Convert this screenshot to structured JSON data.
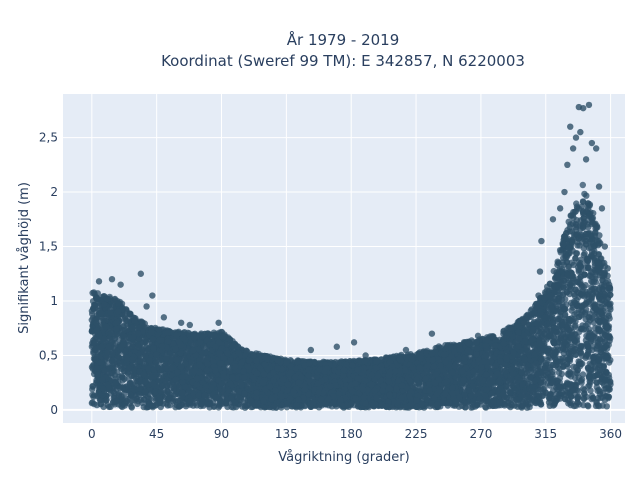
{
  "chart_data": {
    "type": "scatter",
    "title": "År 1979 - 2019",
    "subtitle": "Koordinat (Sweref 99 TM): E 342857, N 6220003",
    "xlabel": "Vågriktning (grader)",
    "ylabel": "Signifikant våghöjd (m)",
    "xlim": [
      -20,
      370
    ],
    "ylim": [
      -0.12,
      2.9
    ],
    "x_ticks": [
      0,
      45,
      90,
      135,
      180,
      225,
      270,
      315,
      360
    ],
    "x_tick_labels": [
      "0",
      "45",
      "90",
      "135",
      "180",
      "225",
      "270",
      "315",
      "360"
    ],
    "y_ticks": [
      0,
      0.5,
      1,
      1.5,
      2,
      2.5
    ],
    "y_tick_labels": [
      "0",
      "0,5",
      "1",
      "1,5",
      "2",
      "2,5"
    ],
    "marker_color": "#2e5068",
    "background": "#e5ecf6",
    "grid": true,
    "envelope": {
      "x": [
        0,
        10,
        20,
        30,
        45,
        60,
        75,
        90,
        105,
        120,
        135,
        150,
        165,
        180,
        195,
        210,
        225,
        240,
        255,
        270,
        285,
        300,
        310,
        320,
        330,
        340,
        350,
        360
      ],
      "y_upper": [
        1.1,
        1.05,
        1.0,
        0.85,
        0.75,
        0.72,
        0.7,
        0.72,
        0.55,
        0.5,
        0.46,
        0.45,
        0.44,
        0.45,
        0.46,
        0.5,
        0.52,
        0.58,
        0.62,
        0.65,
        0.72,
        0.85,
        1.0,
        1.25,
        1.7,
        2.1,
        1.75,
        1.1
      ]
    },
    "outliers": [
      {
        "x": 5,
        "y": 1.18
      },
      {
        "x": 14,
        "y": 1.2
      },
      {
        "x": 20,
        "y": 1.15
      },
      {
        "x": 34,
        "y": 1.25
      },
      {
        "x": 42,
        "y": 1.05
      },
      {
        "x": 38,
        "y": 0.95
      },
      {
        "x": 50,
        "y": 0.85
      },
      {
        "x": 62,
        "y": 0.8
      },
      {
        "x": 68,
        "y": 0.78
      },
      {
        "x": 88,
        "y": 0.8
      },
      {
        "x": 152,
        "y": 0.55
      },
      {
        "x": 170,
        "y": 0.58
      },
      {
        "x": 182,
        "y": 0.62
      },
      {
        "x": 190,
        "y": 0.5
      },
      {
        "x": 218,
        "y": 0.55
      },
      {
        "x": 236,
        "y": 0.7
      },
      {
        "x": 268,
        "y": 0.68
      },
      {
        "x": 290,
        "y": 0.75
      },
      {
        "x": 300,
        "y": 0.8
      },
      {
        "x": 310,
        "y": 1.05
      },
      {
        "x": 311,
        "y": 1.27
      },
      {
        "x": 312,
        "y": 1.55
      },
      {
        "x": 320,
        "y": 1.75
      },
      {
        "x": 325,
        "y": 1.85
      },
      {
        "x": 328,
        "y": 2.0
      },
      {
        "x": 330,
        "y": 2.25
      },
      {
        "x": 334,
        "y": 2.4
      },
      {
        "x": 336,
        "y": 2.5
      },
      {
        "x": 338,
        "y": 2.78
      },
      {
        "x": 341,
        "y": 2.77
      },
      {
        "x": 345,
        "y": 2.8
      },
      {
        "x": 347,
        "y": 2.45
      },
      {
        "x": 350,
        "y": 2.4
      },
      {
        "x": 352,
        "y": 2.05
      },
      {
        "x": 354,
        "y": 1.85
      },
      {
        "x": 356,
        "y": 1.5
      },
      {
        "x": 358,
        "y": 1.3
      },
      {
        "x": 359,
        "y": 1.15
      },
      {
        "x": 332,
        "y": 2.6
      },
      {
        "x": 339,
        "y": 2.55
      },
      {
        "x": 343,
        "y": 2.3
      }
    ]
  }
}
